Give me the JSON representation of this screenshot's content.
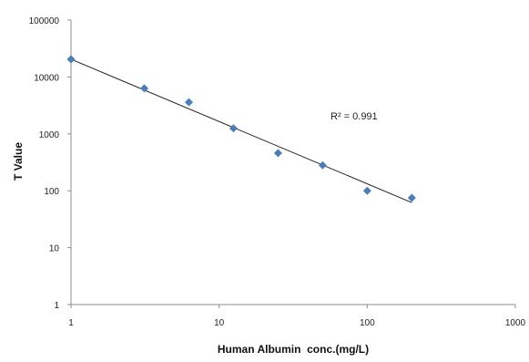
{
  "chart_data": {
    "type": "scatter",
    "xlabel": "Human Albumin  conc.(mg/L)",
    "ylabel": "T Value",
    "x_scale": "log",
    "y_scale": "log",
    "xlim": [
      1,
      1000
    ],
    "ylim": [
      1,
      100000
    ],
    "x_ticks": [
      "1",
      "10",
      "100",
      "1000"
    ],
    "y_ticks": [
      "1",
      "10",
      "100",
      "1000",
      "10000",
      "100000"
    ],
    "grid": false,
    "legend": "none",
    "series": [
      {
        "color": "#4a7ebb",
        "marker": "diamond",
        "points": [
          {
            "x": 1,
            "y": 20500
          },
          {
            "x": 3.125,
            "y": 6300
          },
          {
            "x": 6.25,
            "y": 3600
          },
          {
            "x": 12.5,
            "y": 1250
          },
          {
            "x": 25,
            "y": 460
          },
          {
            "x": 50,
            "y": 280
          },
          {
            "x": 100,
            "y": 100
          },
          {
            "x": 200,
            "y": 75
          }
        ]
      }
    ],
    "trendline": {
      "type": "power",
      "color": "#222222",
      "x_range": [
        1,
        200
      ],
      "y_at_start": 20500,
      "y_at_end": 62
    },
    "annotations": [
      {
        "text": "R² = 0.991"
      }
    ]
  }
}
